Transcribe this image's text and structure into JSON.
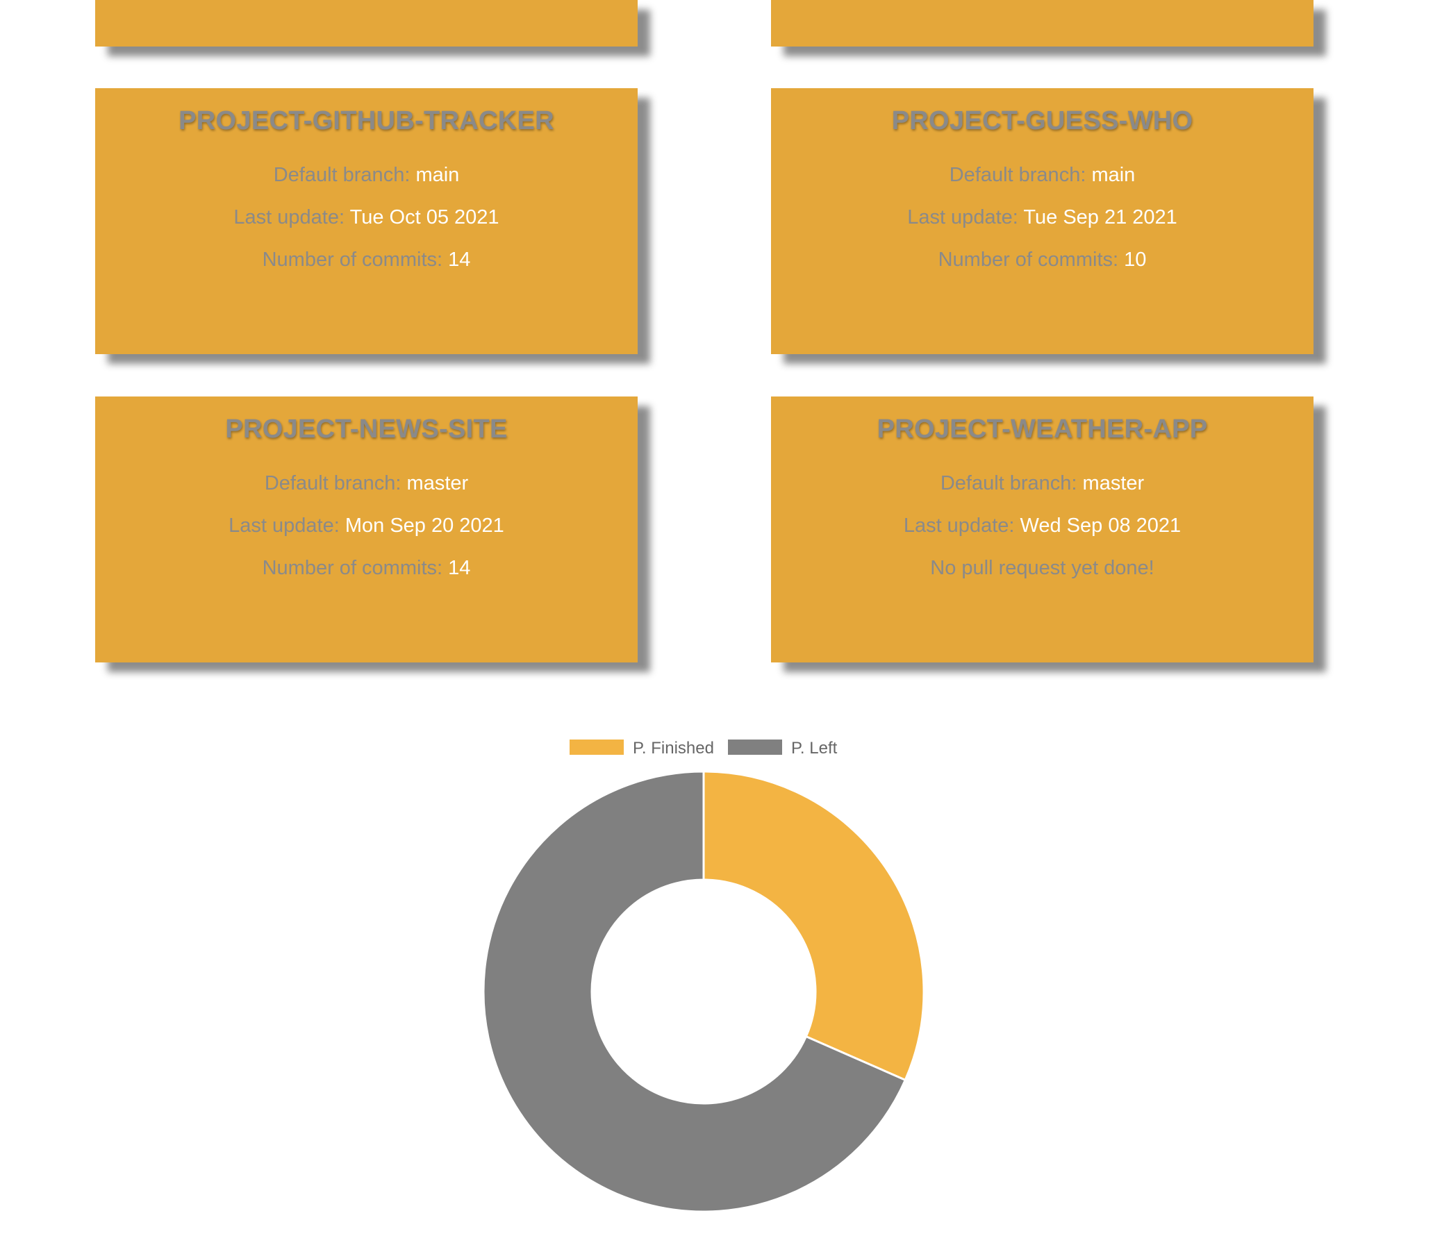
{
  "cards": [
    {
      "title": "",
      "partial": true
    },
    {
      "title": "",
      "partial": true
    },
    {
      "title": "PROJECT-GITHUB-TRACKER",
      "lines": [
        {
          "label": "Default branch:",
          "value": "main"
        },
        {
          "label": "Last update:",
          "value": "Tue Oct 05 2021"
        },
        {
          "label": "Number of commits:",
          "value": "14"
        }
      ]
    },
    {
      "title": "PROJECT-GUESS-WHO",
      "lines": [
        {
          "label": "Default branch:",
          "value": "main"
        },
        {
          "label": "Last update:",
          "value": "Tue Sep 21 2021"
        },
        {
          "label": "Number of commits:",
          "value": "10"
        }
      ]
    },
    {
      "title": "PROJECT-NEWS-SITE",
      "lines": [
        {
          "label": "Default branch:",
          "value": "master"
        },
        {
          "label": "Last update:",
          "value": "Mon Sep 20 2021"
        },
        {
          "label": "Number of commits:",
          "value": "14"
        }
      ]
    },
    {
      "title": "PROJECT-WEATHER-APP",
      "lines": [
        {
          "label": "Default branch:",
          "value": "master"
        },
        {
          "label": "Last update:",
          "value": "Wed Sep 08 2021"
        },
        {
          "label": "No pull request yet done!",
          "value": ""
        }
      ]
    }
  ],
  "chart_data": {
    "type": "pie",
    "variant": "doughnut",
    "categories": [
      "P. Finished",
      "P. Left"
    ],
    "values": [
      6,
      13
    ],
    "colors": [
      "#f3b443",
      "#808080"
    ],
    "legend": "top"
  }
}
